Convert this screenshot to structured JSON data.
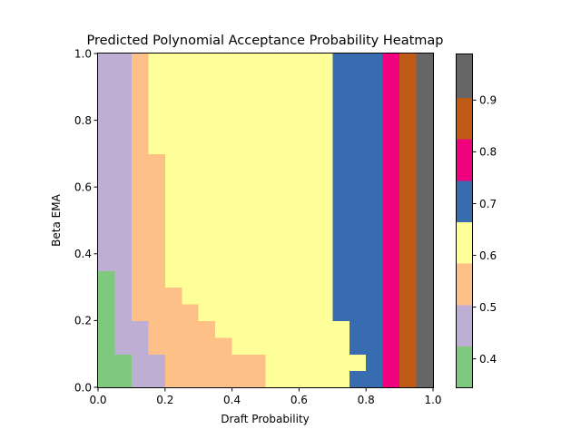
{
  "chart_data": {
    "type": "heatmap",
    "title": "Predicted Polynomial Acceptance Probability Heatmap",
    "xlabel": "Draft Probability",
    "ylabel": "Beta EMA",
    "xlim": [
      0.0,
      1.0
    ],
    "ylim": [
      0.0,
      1.0
    ],
    "xticks": [
      "0.0",
      "0.2",
      "0.4",
      "0.6",
      "0.8",
      "1.0"
    ],
    "yticks": [
      "0.0",
      "0.2",
      "0.4",
      "0.6",
      "0.8",
      "1.0"
    ],
    "x_bin_edges": [
      0,
      0.05,
      0.1,
      0.15,
      0.2,
      0.25,
      0.3,
      0.35,
      0.4,
      0.45,
      0.5,
      0.55,
      0.6,
      0.65,
      0.7,
      0.75,
      0.8,
      0.85,
      0.9,
      0.95,
      1.0
    ],
    "y_bin_edges": [
      0,
      0.05,
      0.1,
      0.15,
      0.2,
      0.25,
      0.3,
      0.35,
      0.4,
      0.45,
      0.5,
      0.55,
      0.6,
      0.65,
      0.7,
      0.75,
      0.8,
      0.85,
      0.9,
      0.95,
      1.0
    ],
    "column_boundaries_note": "level_index per cell: rows are y bins bottom to top, columns are x bins left to right",
    "levels": [
      0.4,
      0.5,
      0.55,
      0.6,
      0.7,
      0.8,
      0.85,
      0.95
    ],
    "colorbar": {
      "boundaries": [
        0.345,
        0.425,
        0.505,
        0.585,
        0.665,
        0.745,
        0.825,
        0.905,
        0.99
      ],
      "colors": [
        "#7fc97f",
        "#beaed4",
        "#fdc086",
        "#ffff99",
        "#386cb0",
        "#f0027f",
        "#bf5b17",
        "#666666"
      ],
      "ticks": [
        "0.4",
        "0.5",
        "0.6",
        "0.7",
        "0.8",
        "0.9"
      ]
    },
    "cells": [
      [
        0,
        0,
        1,
        1,
        2,
        2,
        2,
        2,
        2,
        2,
        3,
        3,
        3,
        3,
        3,
        4,
        4,
        5,
        6,
        7
      ],
      [
        0,
        0,
        1,
        1,
        2,
        2,
        2,
        2,
        2,
        2,
        3,
        3,
        3,
        3,
        3,
        3,
        4,
        5,
        6,
        7
      ],
      [
        0,
        1,
        1,
        2,
        2,
        2,
        2,
        2,
        3,
        3,
        3,
        3,
        3,
        3,
        3,
        4,
        4,
        5,
        6,
        7
      ],
      [
        0,
        1,
        1,
        2,
        2,
        2,
        2,
        3,
        3,
        3,
        3,
        3,
        3,
        3,
        3,
        4,
        4,
        5,
        6,
        7
      ],
      [
        0,
        1,
        2,
        2,
        2,
        2,
        3,
        3,
        3,
        3,
        3,
        3,
        3,
        3,
        4,
        4,
        4,
        5,
        6,
        7
      ],
      [
        0,
        1,
        2,
        2,
        2,
        3,
        3,
        3,
        3,
        3,
        3,
        3,
        3,
        3,
        4,
        4,
        4,
        5,
        6,
        7
      ],
      [
        0,
        1,
        2,
        2,
        3,
        3,
        3,
        3,
        3,
        3,
        3,
        3,
        3,
        3,
        4,
        4,
        4,
        5,
        6,
        7
      ],
      [
        1,
        1,
        2,
        2,
        3,
        3,
        3,
        3,
        3,
        3,
        3,
        3,
        3,
        3,
        4,
        4,
        4,
        5,
        6,
        7
      ],
      [
        1,
        1,
        2,
        2,
        3,
        3,
        3,
        3,
        3,
        3,
        3,
        3,
        3,
        3,
        4,
        4,
        4,
        5,
        6,
        7
      ],
      [
        1,
        1,
        2,
        2,
        3,
        3,
        3,
        3,
        3,
        3,
        3,
        3,
        3,
        3,
        4,
        4,
        4,
        5,
        6,
        7
      ],
      [
        1,
        1,
        2,
        2,
        3,
        3,
        3,
        3,
        3,
        3,
        3,
        3,
        3,
        3,
        4,
        4,
        4,
        5,
        6,
        7
      ],
      [
        1,
        1,
        2,
        2,
        3,
        3,
        3,
        3,
        3,
        3,
        3,
        3,
        3,
        3,
        4,
        4,
        4,
        5,
        6,
        7
      ],
      [
        1,
        1,
        2,
        2,
        3,
        3,
        3,
        3,
        3,
        3,
        3,
        3,
        3,
        3,
        4,
        4,
        4,
        5,
        6,
        7
      ],
      [
        1,
        1,
        2,
        2,
        3,
        3,
        3,
        3,
        3,
        3,
        3,
        3,
        3,
        3,
        4,
        4,
        4,
        5,
        6,
        7
      ],
      [
        1,
        1,
        2,
        3,
        3,
        3,
        3,
        3,
        3,
        3,
        3,
        3,
        3,
        3,
        4,
        4,
        4,
        5,
        6,
        7
      ],
      [
        1,
        1,
        2,
        3,
        3,
        3,
        3,
        3,
        3,
        3,
        3,
        3,
        3,
        3,
        4,
        4,
        4,
        5,
        6,
        7
      ],
      [
        1,
        1,
        2,
        3,
        3,
        3,
        3,
        3,
        3,
        3,
        3,
        3,
        3,
        3,
        4,
        4,
        4,
        5,
        6,
        7
      ],
      [
        1,
        1,
        2,
        3,
        3,
        3,
        3,
        3,
        3,
        3,
        3,
        3,
        3,
        3,
        4,
        4,
        4,
        5,
        6,
        7
      ],
      [
        1,
        1,
        2,
        3,
        3,
        3,
        3,
        3,
        3,
        3,
        3,
        3,
        3,
        3,
        4,
        4,
        4,
        5,
        6,
        7
      ],
      [
        1,
        1,
        2,
        3,
        3,
        3,
        3,
        3,
        3,
        3,
        3,
        3,
        3,
        3,
        4,
        4,
        4,
        5,
        6,
        7
      ]
    ],
    "grid": false
  }
}
